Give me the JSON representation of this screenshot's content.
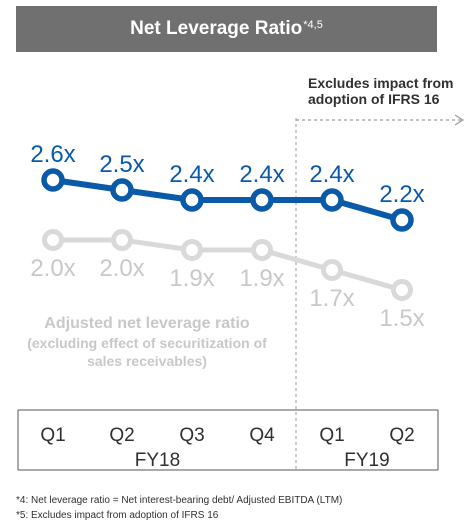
{
  "title": {
    "text": "Net Leverage Ratio",
    "superscript": "*4,5"
  },
  "ifrs_note": {
    "line1": "Excludes impact from",
    "line2": "adoption of IFRS 16"
  },
  "footnotes": [
    "*4: Net leverage ratio = Net interest-bearing debt/ Adjusted EBITDA (LTM)",
    "*5: Excludes impact from adoption of IFRS 16"
  ],
  "colors": {
    "primary": "#0a5aa8",
    "adjusted": "#d9d9d9",
    "adjusted_label": "#c8c8c8",
    "title_bg": "#707070",
    "axis_text": "#303030"
  },
  "chart_data": {
    "type": "line",
    "categories": [
      "Q1",
      "Q2",
      "Q3",
      "Q4",
      "Q1",
      "Q2"
    ],
    "groups": [
      {
        "label": "FY18",
        "span": [
          0,
          3
        ]
      },
      {
        "label": "FY19",
        "span": [
          4,
          5
        ]
      }
    ],
    "series": [
      {
        "values": [
          2.6,
          2.5,
          2.4,
          2.4,
          2.4,
          2.2
        ],
        "labels": [
          "2.6x",
          "2.5x",
          "2.4x",
          "2.4x",
          "2.4x",
          "2.2x"
        ],
        "color": "#0a5aa8"
      },
      {
        "name": "Adjusted net leverage ratio",
        "name_lines": [
          "Adjusted net leverage ratio",
          "(excluding effect of securitization of",
          "sales receivables)"
        ],
        "values": [
          2.0,
          2.0,
          1.9,
          1.9,
          1.7,
          1.5
        ],
        "labels": [
          "2.0x",
          "2.0x",
          "1.9x",
          "1.9x",
          "1.7x",
          "1.5x"
        ],
        "color": "#d9d9d9"
      }
    ],
    "divider_after_category_index": 3,
    "legend": "annotation"
  }
}
